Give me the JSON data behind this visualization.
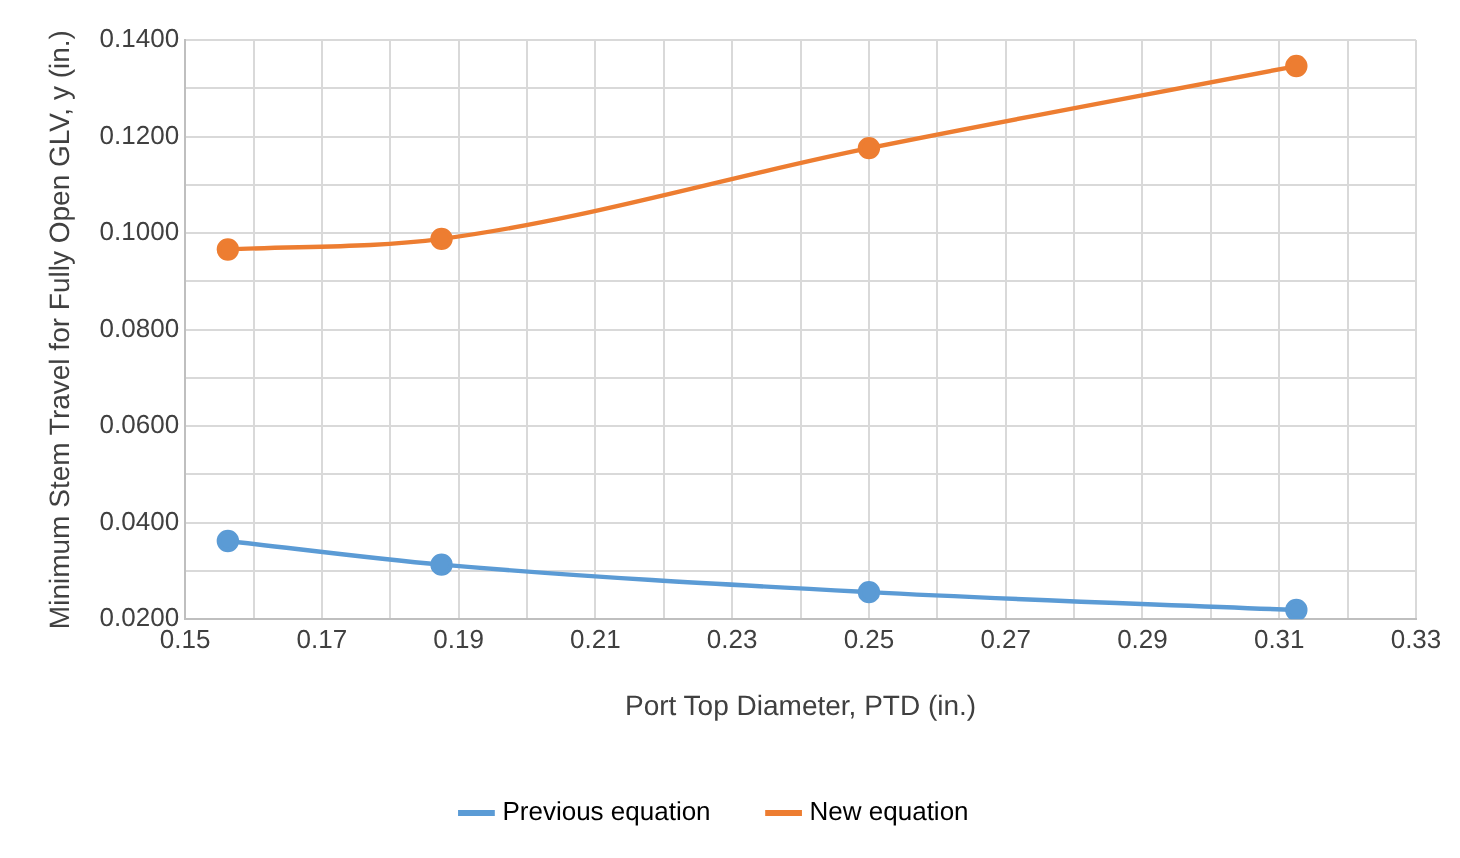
{
  "chart_data": {
    "type": "line",
    "xlabel": "Port Top Diameter, PTD (in.)",
    "ylabel": "Minimum Stem Travel for Fully Open GLV, y (in.)",
    "x": [
      0.15625,
      0.1875,
      0.25,
      0.3125
    ],
    "series": [
      {
        "name": "Previous equation",
        "color": "#5b9bd5",
        "values": [
          0.0362,
          0.0313,
          0.0256,
          0.0219
        ]
      },
      {
        "name": "New equation",
        "color": "#ed7d31",
        "values": [
          0.0966,
          0.0988,
          0.1176,
          0.1346
        ]
      }
    ],
    "xlim": [
      0.15,
      0.33
    ],
    "xticks": [
      0.15,
      {
        "value": 0.16,
        "label": null
      },
      0.17,
      {
        "value": 0.18,
        "label": null
      },
      0.19,
      {
        "value": 0.2,
        "label": null
      },
      0.21,
      {
        "value": 0.22,
        "label": null
      },
      0.23,
      {
        "value": 0.24,
        "label": null
      },
      0.25,
      {
        "value": 0.26,
        "label": null
      },
      0.27,
      {
        "value": 0.28,
        "label": null
      },
      0.29,
      {
        "value": 0.3,
        "label": null
      },
      0.31,
      {
        "value": 0.32,
        "label": null
      },
      0.33
    ],
    "ylim": [
      0.02,
      0.14
    ],
    "yticks": [
      {
        "value": 0.02,
        "label": "0.0200"
      },
      {
        "value": 0.03,
        "label": null
      },
      {
        "value": 0.04,
        "label": "0.0400"
      },
      {
        "value": 0.05,
        "label": null
      },
      {
        "value": 0.06,
        "label": "0.0600"
      },
      {
        "value": 0.07,
        "label": null
      },
      {
        "value": 0.08,
        "label": "0.0800"
      },
      {
        "value": 0.09,
        "label": null
      },
      {
        "value": 0.1,
        "label": "0.1000"
      },
      {
        "value": 0.11,
        "label": null
      },
      {
        "value": 0.12,
        "label": "0.1200"
      },
      {
        "value": 0.13,
        "label": null
      },
      {
        "value": 0.14,
        "label": "0.1400"
      }
    ],
    "grid": true,
    "legend": "bottom",
    "marker": "circle",
    "line_style": "solid"
  }
}
